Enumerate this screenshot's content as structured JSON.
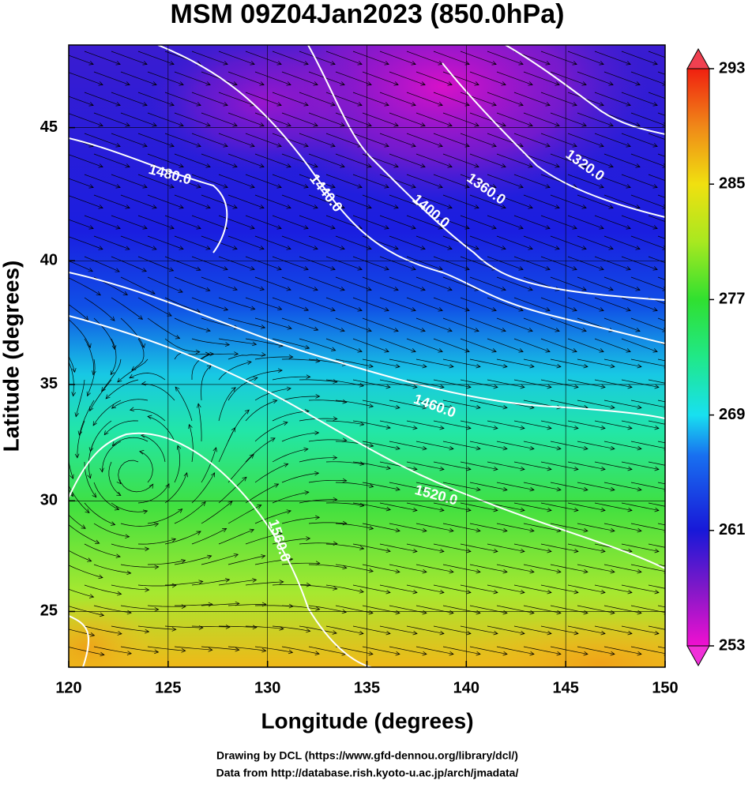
{
  "chart_data": {
    "type": "map",
    "title": "MSM 09Z04Jan2023 (850.0hPa)",
    "x_label": "Longitude (degrees)",
    "y_label": "Latitude  (degrees)",
    "projection": "mercator",
    "xlim": [
      120,
      150
    ],
    "ylim": [
      22.4,
      47.9
    ],
    "xticks": [
      120,
      125,
      130,
      135,
      140,
      145,
      150
    ],
    "yticks": [
      25,
      30,
      35,
      40,
      45
    ],
    "grid": true,
    "colorbar": {
      "lim": [
        253,
        293
      ],
      "ticks": [
        253,
        261,
        269,
        277,
        285,
        293
      ]
    },
    "contour_labels": [
      "1480.0",
      "1440.0",
      "1400.0",
      "1360.0",
      "1320.0",
      "1460.0",
      "1520.0",
      "1560.0"
    ]
  },
  "footer": [
    "Drawing by DCL (https://www.gfd-dennou.org/library/dcl/)",
    "Data from http://database.rish.kyoto-u.ac.jp/arch/jmadata/"
  ]
}
